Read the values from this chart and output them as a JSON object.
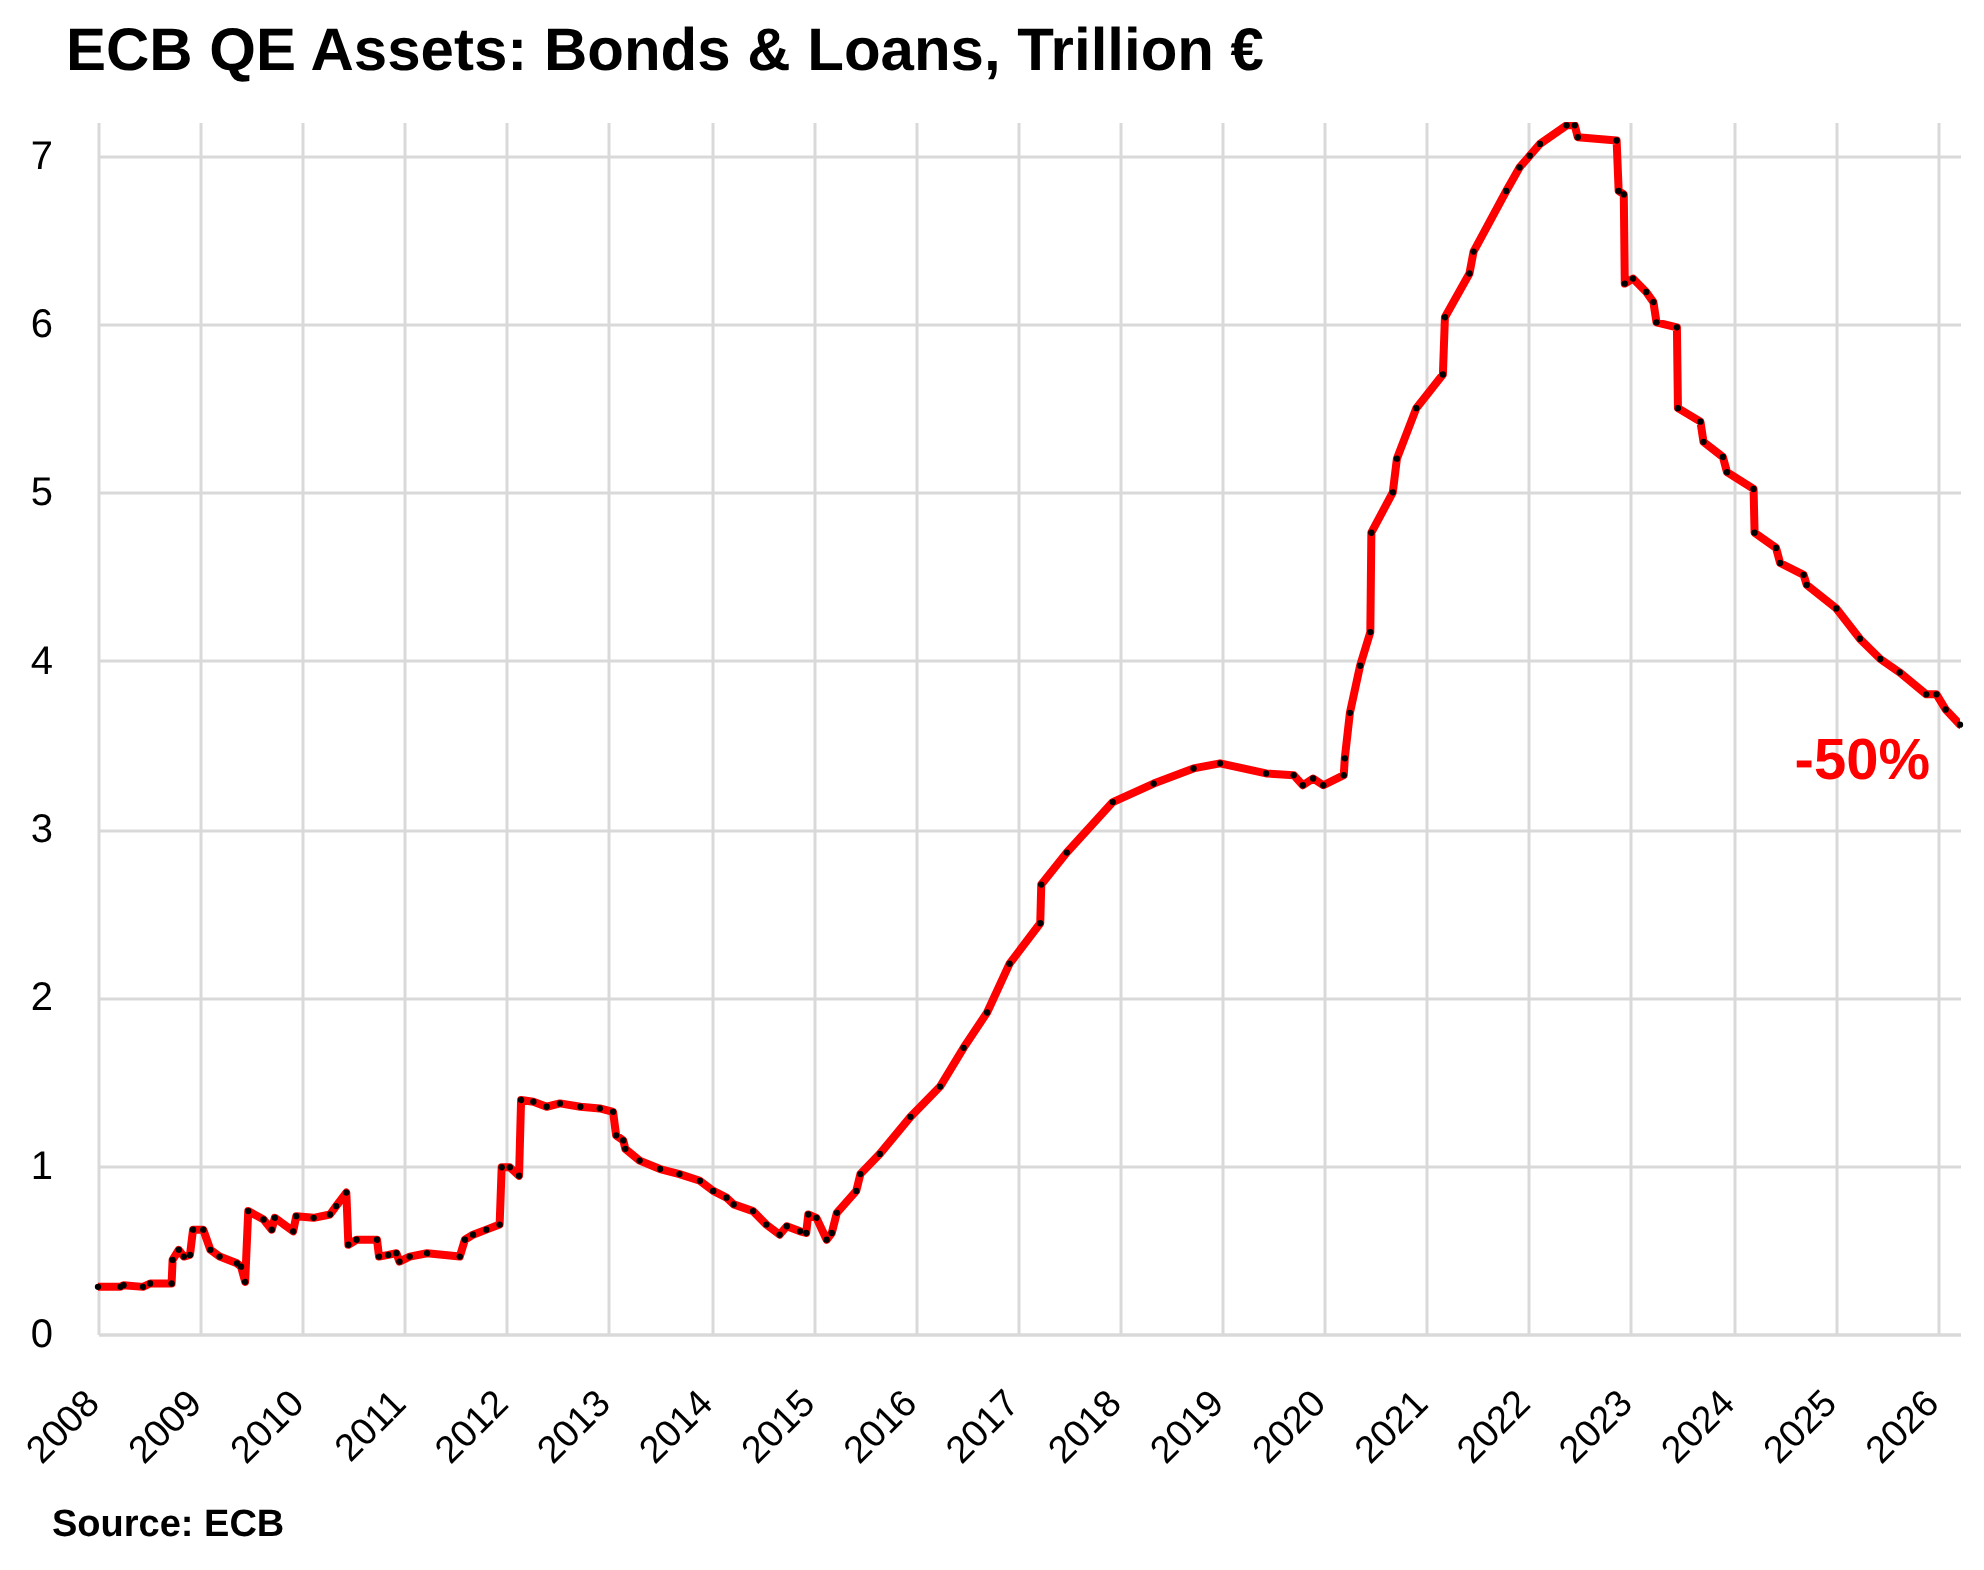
{
  "chart_data": {
    "type": "line",
    "title": "ECB QE Assets: Bonds & Loans, Trillion €",
    "x": [
      2008.0,
      2008.22,
      2008.25,
      2008.44,
      2008.51,
      2008.72,
      2008.73,
      2008.79,
      2008.84,
      2008.9,
      2008.93,
      2009.03,
      2009.1,
      2009.19,
      2009.36,
      2009.4,
      2009.44,
      2009.47,
      2009.62,
      2009.7,
      2009.73,
      2009.91,
      2009.94,
      2010.11,
      2010.27,
      2010.33,
      2010.43,
      2010.45,
      2010.53,
      2010.73,
      2010.75,
      2010.84,
      2010.92,
      2010.95,
      2011.05,
      2011.22,
      2011.54,
      2011.59,
      2011.67,
      2011.8,
      2011.93,
      2011.95,
      2012.03,
      2012.12,
      2012.14,
      2012.26,
      2012.39,
      2012.52,
      2012.72,
      2012.91,
      2013.04,
      2013.07,
      2013.14,
      2013.16,
      2013.3,
      2013.5,
      2013.69,
      2013.89,
      2014.02,
      2014.15,
      2014.22,
      2014.41,
      2014.54,
      2014.67,
      2014.74,
      2014.87,
      2014.93,
      2014.95,
      2015.03,
      2015.13,
      2015.18,
      2015.23,
      2015.42,
      2015.46,
      2015.65,
      2015.95,
      2016.24,
      2016.47,
      2016.7,
      2016.92,
      2017.22,
      2017.23,
      2017.48,
      2017.93,
      2018.33,
      2018.72,
      2018.98,
      2019.43,
      2019.7,
      2019.79,
      2019.89,
      2019.99,
      2020.19,
      2020.2,
      2020.25,
      2020.35,
      2020.45,
      2020.46,
      2020.67,
      2020.71,
      2020.9,
      2021.16,
      2021.18,
      2021.42,
      2021.46,
      2021.78,
      2021.91,
      2022.01,
      2022.11,
      2022.37,
      2022.45,
      2022.48,
      2022.86,
      2022.88,
      2022.93,
      2022.94,
      2023.02,
      2023.15,
      2023.22,
      2023.25,
      2023.45,
      2023.46,
      2023.68,
      2023.71,
      2023.9,
      2023.94,
      2024.2,
      2024.21,
      2024.42,
      2024.46,
      2024.69,
      2024.72,
      2025.01,
      2025.24,
      2025.44,
      2025.63,
      2025.89,
      2025.99,
      2026.08,
      2026.22
    ],
    "series": [
      {
        "color": "#ff0000",
        "values": [
          0.28,
          0.28,
          0.29,
          0.28,
          0.3,
          0.3,
          0.44,
          0.5,
          0.46,
          0.47,
          0.62,
          0.62,
          0.5,
          0.46,
          0.42,
          0.4,
          0.31,
          0.73,
          0.68,
          0.62,
          0.69,
          0.61,
          0.7,
          0.69,
          0.71,
          0.76,
          0.84,
          0.53,
          0.56,
          0.56,
          0.46,
          0.47,
          0.48,
          0.43,
          0.46,
          0.48,
          0.46,
          0.56,
          0.59,
          0.62,
          0.65,
          0.99,
          0.99,
          0.94,
          1.39,
          1.38,
          1.35,
          1.37,
          1.35,
          1.34,
          1.32,
          1.18,
          1.15,
          1.1,
          1.03,
          0.98,
          0.95,
          0.91,
          0.85,
          0.81,
          0.77,
          0.73,
          0.65,
          0.59,
          0.64,
          0.61,
          0.6,
          0.71,
          0.69,
          0.56,
          0.6,
          0.72,
          0.85,
          0.95,
          1.07,
          1.29,
          1.47,
          1.7,
          1.91,
          2.2,
          2.44,
          2.67,
          2.86,
          3.16,
          3.27,
          3.36,
          3.39,
          3.33,
          3.32,
          3.26,
          3.3,
          3.26,
          3.32,
          3.42,
          3.69,
          3.97,
          4.17,
          4.76,
          5.0,
          5.2,
          5.5,
          5.7,
          6.04,
          6.3,
          6.43,
          6.79,
          6.93,
          7.0,
          7.07,
          7.18,
          7.18,
          7.11,
          7.09,
          6.79,
          6.77,
          6.24,
          6.27,
          6.19,
          6.13,
          6.01,
          5.98,
          5.5,
          5.42,
          5.3,
          5.21,
          5.12,
          5.02,
          4.76,
          4.67,
          4.58,
          4.51,
          4.45,
          4.31,
          4.13,
          4.01,
          3.93,
          3.8,
          3.8,
          3.71,
          3.62
        ]
      },
      {
        "type": "scatter",
        "color": "#000000",
        "values": [
          0.28,
          0.28,
          0.29,
          0.28,
          0.3,
          0.3,
          0.44,
          0.5,
          0.46,
          0.47,
          0.62,
          0.62,
          0.5,
          0.46,
          0.42,
          0.4,
          0.31,
          0.73,
          0.68,
          0.62,
          0.69,
          0.61,
          0.7,
          0.69,
          0.71,
          0.76,
          0.84,
          0.53,
          0.56,
          0.56,
          0.46,
          0.47,
          0.48,
          0.43,
          0.46,
          0.48,
          0.46,
          0.56,
          0.59,
          0.62,
          0.65,
          0.99,
          0.99,
          0.94,
          1.39,
          1.38,
          1.35,
          1.37,
          1.35,
          1.34,
          1.32,
          1.18,
          1.15,
          1.1,
          1.03,
          0.98,
          0.95,
          0.91,
          0.85,
          0.81,
          0.77,
          0.73,
          0.65,
          0.59,
          0.64,
          0.61,
          0.6,
          0.71,
          0.69,
          0.56,
          0.6,
          0.72,
          0.85,
          0.95,
          1.07,
          1.29,
          1.47,
          1.7,
          1.91,
          2.2,
          2.44,
          2.67,
          2.86,
          3.16,
          3.27,
          3.36,
          3.39,
          3.33,
          3.32,
          3.26,
          3.3,
          3.26,
          3.32,
          3.42,
          3.69,
          3.97,
          4.17,
          4.76,
          5.0,
          5.2,
          5.5,
          5.7,
          6.04,
          6.3,
          6.43,
          6.79,
          6.93,
          7.0,
          7.07,
          7.18,
          7.18,
          7.11,
          7.09,
          6.79,
          6.77,
          6.24,
          6.27,
          6.19,
          6.13,
          6.01,
          5.98,
          5.5,
          5.42,
          5.3,
          5.21,
          5.12,
          5.02,
          4.76,
          4.67,
          4.58,
          4.51,
          4.45,
          4.31,
          4.13,
          4.01,
          3.93,
          3.8,
          3.8,
          3.71,
          3.62
        ]
      }
    ],
    "xlim": [
      2008,
      2026.22
    ],
    "xticks": [
      2008,
      2009,
      2010,
      2011,
      2012,
      2013,
      2014,
      2015,
      2016,
      2017,
      2018,
      2019,
      2020,
      2021,
      2022,
      2023,
      2024,
      2025,
      2026
    ],
    "ylim": [
      0,
      7.2
    ],
    "yticks": [
      0,
      1,
      2,
      3,
      4,
      5,
      6,
      7
    ],
    "grid": true,
    "annotations": [
      {
        "text": "-50%",
        "x": 2026.22,
        "y": 3.62
      },
      "Source: ECB"
    ]
  }
}
